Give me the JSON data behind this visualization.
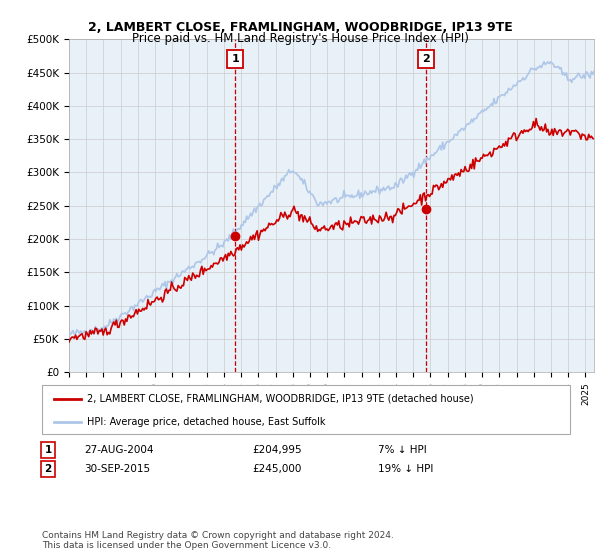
{
  "title": "2, LAMBERT CLOSE, FRAMLINGHAM, WOODBRIDGE, IP13 9TE",
  "subtitle": "Price paid vs. HM Land Registry's House Price Index (HPI)",
  "ylim": [
    0,
    500000
  ],
  "yticks": [
    0,
    50000,
    100000,
    150000,
    200000,
    250000,
    300000,
    350000,
    400000,
    450000,
    500000
  ],
  "ytick_labels": [
    "£0",
    "£50K",
    "£100K",
    "£150K",
    "£200K",
    "£250K",
    "£300K",
    "£350K",
    "£400K",
    "£450K",
    "£500K"
  ],
  "sale1_date": 2004.65,
  "sale1_price": 204995,
  "sale1_label": "27-AUG-2004",
  "sale1_value_label": "£204,995",
  "sale1_pct": "7% ↓ HPI",
  "sale2_date": 2015.75,
  "sale2_price": 245000,
  "sale2_label": "30-SEP-2015",
  "sale2_value_label": "£245,000",
  "sale2_pct": "19% ↓ HPI",
  "hpi_color": "#aec6e8",
  "price_color": "#cc0000",
  "marker_color": "#cc0000",
  "bg_color": "#e8f0f8",
  "grid_color": "#cccccc",
  "dashed_line_color": "#cc0000",
  "legend_label1": "2, LAMBERT CLOSE, FRAMLINGHAM, WOODBRIDGE, IP13 9TE (detached house)",
  "legend_label2": "HPI: Average price, detached house, East Suffolk",
  "footer": "Contains HM Land Registry data © Crown copyright and database right 2024.\nThis data is licensed under the Open Government Licence v3.0.",
  "xmin": 1995.0,
  "xmax": 2025.5
}
